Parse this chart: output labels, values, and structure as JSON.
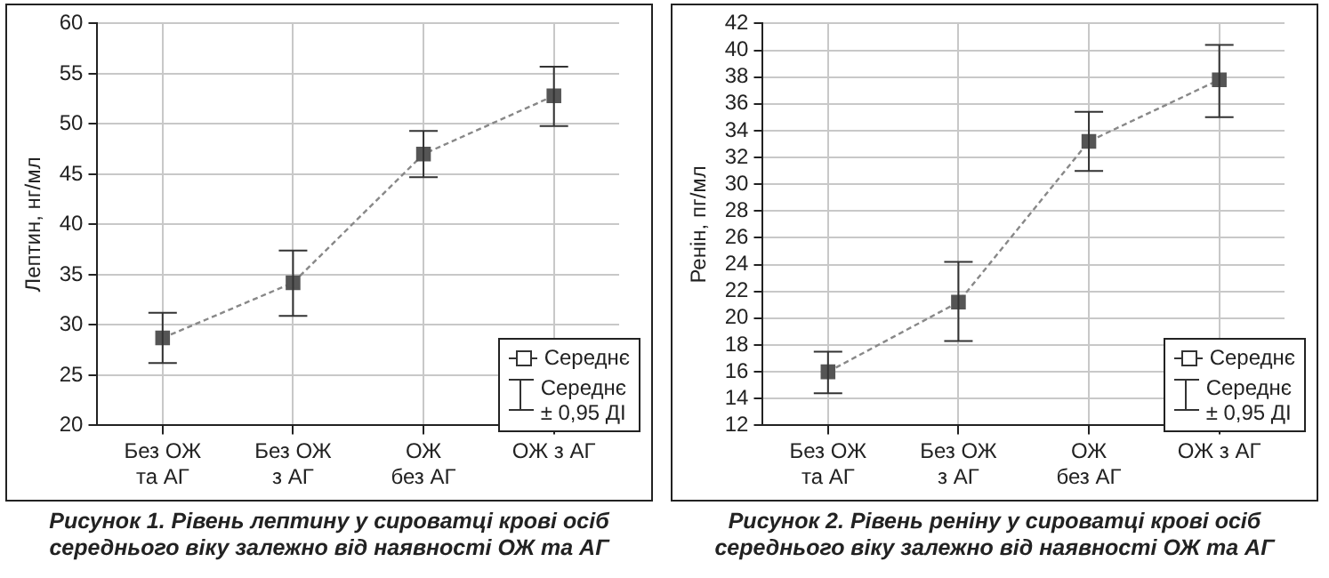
{
  "chart_data": [
    {
      "type": "line",
      "title": "Рисунок 1.  Рівень лептину у сироватці крові осіб середнього віку залежно від наявності ОЖ та АГ",
      "ylabel": "Лептин, нг/мл",
      "categories": [
        "Без ОЖ\nта АГ",
        "Без ОЖ\nз АГ",
        "ОЖ\nбез АГ",
        "ОЖ з АГ"
      ],
      "series": [
        {
          "name": "Середнє",
          "color": "#555555",
          "values": [
            28.7,
            34.2,
            47.0,
            52.8
          ],
          "errors": [
            [
              26.2,
              31.2
            ],
            [
              30.9,
              37.4
            ],
            [
              44.7,
              49.3
            ],
            [
              49.8,
              55.7
            ]
          ]
        }
      ],
      "ylim": [
        20,
        60
      ],
      "yticks": [
        20,
        25,
        30,
        35,
        40,
        45,
        50,
        55,
        60
      ],
      "grid": true,
      "legend": "bottom right",
      "marker": "square",
      "line_style": "dashed",
      "annotations": [
        "Середнє\n± 0,95 ДІ"
      ]
    },
    {
      "type": "line",
      "title": "Рисунок 2.  Рівень реніну у сироватці крові осіб середнього віку залежно від наявності ОЖ та АГ",
      "ylabel": "Ренін, пг/мл",
      "categories": [
        "Без ОЖ\nта АГ",
        "Без ОЖ\nз АГ",
        "ОЖ\nбез АГ",
        "ОЖ з АГ"
      ],
      "series": [
        {
          "name": "Середнє",
          "color": "#555555",
          "values": [
            16.0,
            21.2,
            33.2,
            37.8
          ],
          "errors": [
            [
              14.4,
              17.5
            ],
            [
              18.3,
              24.2
            ],
            [
              31.0,
              35.4
            ],
            [
              35.0,
              40.4
            ]
          ]
        }
      ],
      "ylim": [
        12,
        42
      ],
      "yticks": [
        12,
        14,
        16,
        18,
        20,
        22,
        24,
        26,
        28,
        30,
        32,
        34,
        36,
        38,
        40,
        42
      ],
      "grid": true,
      "legend": "bottom right",
      "marker": "square",
      "line_style": "dashed",
      "annotations": [
        "Середнє\n± 0,95 ДІ"
      ]
    }
  ]
}
